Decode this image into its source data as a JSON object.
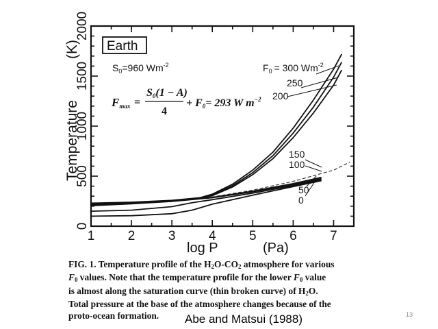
{
  "chart_data": {
    "type": "line",
    "xlabel": "log P",
    "xunit": "(Pa)",
    "ylabel": "Temperature",
    "yunit": "(K)",
    "xlim": [
      1,
      7.5
    ],
    "ylim": [
      0,
      2000
    ],
    "x_ticks": [
      1,
      2,
      3,
      4,
      5,
      6,
      7
    ],
    "y_ticks": [
      0,
      500,
      1000,
      1500,
      2000
    ],
    "panel_label": "Earth",
    "s0_label": "S",
    "s0_sub": "0",
    "s0_value": "=960 Wm",
    "s0_exp": "-2",
    "formula": {
      "lhs": "F",
      "lhs_sub": "max",
      "numerator": "S",
      "numerator_sub": "0",
      "numerator_rest": "(1 − A)",
      "denominator": "4",
      "plus_term": "+ F",
      "plus_sub": "0",
      "result": "= 293 W  m",
      "result_exp": "−2"
    },
    "series_labels": {
      "f0_prefix": "F",
      "f0_sub": "0",
      "f0_equals": "= 300 Wm",
      "f0_exp": "-2",
      "s250": "250",
      "s200": "200",
      "s150": "150",
      "s100": "100",
      "s50": "50",
      "s0": "0"
    },
    "series": [
      {
        "label": "300",
        "x": [
          1,
          2,
          3,
          3.7,
          4,
          4.5,
          5,
          5.5,
          6,
          6.5,
          7,
          7.2
        ],
        "y": [
          230,
          240,
          258,
          285,
          320,
          420,
          560,
          740,
          980,
          1260,
          1570,
          1720
        ]
      },
      {
        "label": "250",
        "x": [
          1,
          2,
          3,
          3.7,
          4,
          4.5,
          5,
          5.5,
          6,
          6.5,
          7,
          7.2
        ],
        "y": [
          225,
          236,
          255,
          283,
          312,
          405,
          535,
          705,
          930,
          1190,
          1490,
          1640
        ]
      },
      {
        "label": "200",
        "x": [
          1,
          2,
          3,
          3.7,
          4,
          4.5,
          5,
          5.5,
          6,
          6.5,
          7,
          7.2
        ],
        "y": [
          220,
          232,
          252,
          281,
          305,
          392,
          515,
          675,
          885,
          1130,
          1410,
          1560
        ]
      },
      {
        "label": "150",
        "x": [
          1,
          2,
          3,
          4,
          5,
          6,
          6.7
        ],
        "y": [
          210,
          228,
          252,
          288,
          350,
          425,
          488
        ]
      },
      {
        "label": "100",
        "x": [
          1,
          2,
          3,
          4,
          5,
          6,
          6.7
        ],
        "y": [
          205,
          224,
          248,
          284,
          343,
          415,
          476
        ]
      },
      {
        "label": "50",
        "x": [
          1,
          2,
          3,
          3.5,
          4,
          5,
          6,
          6.7
        ],
        "y": [
          150,
          160,
          195,
          235,
          265,
          330,
          405,
          465
        ]
      },
      {
        "label": "0",
        "x": [
          1,
          2,
          3,
          3.5,
          4,
          5,
          6,
          6.7
        ],
        "y": [
          100,
          105,
          125,
          160,
          220,
          310,
          395,
          455
        ]
      }
    ],
    "saturation_curve": {
      "x": [
        1,
        2,
        3,
        4,
        5,
        6,
        7,
        7.4
      ],
      "y": [
        215,
        232,
        258,
        292,
        360,
        448,
        560,
        640
      ]
    }
  },
  "caption": {
    "fig": "FIG. 1.",
    "line1_a": " Temperature profile of the H",
    "line1_sub1": "2",
    "line1_b": "O-CO",
    "line1_sub2": "2",
    "line1_c": " atmosphere for various",
    "line2_a": "F",
    "line2_sub": "0",
    "line2_b": " values. Note that the temperature profile for the lower ",
    "line2_c": "F",
    "line2_sub2": "0",
    "line2_d": " value",
    "line3_a": "is almost along the saturation curve (thin broken curve) of H",
    "line3_sub": "2",
    "line3_b": "O.",
    "line4": "Total pressure at the base of the atmosphere changes because of the",
    "line5": "proto-ocean formation."
  },
  "citation": "Abe and Matsui (1988)",
  "slide_number": "13",
  "colors": {
    "ink": "#111111",
    "background": "#ffffff",
    "slide_number": "#888888"
  }
}
